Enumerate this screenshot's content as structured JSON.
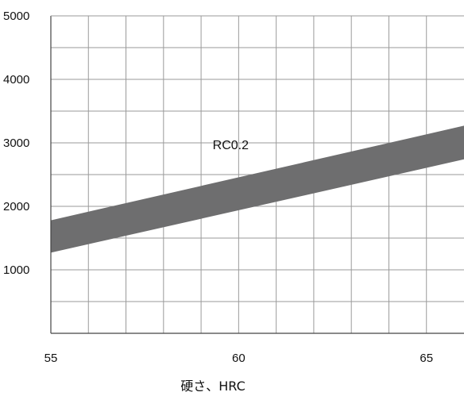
{
  "chart_data": {
    "type": "area",
    "title": "",
    "xlabel": "硬さ、HRC",
    "ylabel": "",
    "xlim": [
      55,
      66
    ],
    "ylim": [
      0,
      5000
    ],
    "x_ticks": [
      55,
      60,
      65
    ],
    "y_ticks": [
      1000,
      2000,
      3000,
      4000,
      5000
    ],
    "grid": true,
    "band_color": "#6e6e6f",
    "series": [
      {
        "name": "RC0.2",
        "x": [
          55,
          66
        ],
        "lower": [
          1270,
          2740
        ],
        "upper": [
          1780,
          3270
        ]
      }
    ],
    "annotations": [
      {
        "text": "RC0.2",
        "x": 60,
        "y": 2950
      }
    ]
  }
}
